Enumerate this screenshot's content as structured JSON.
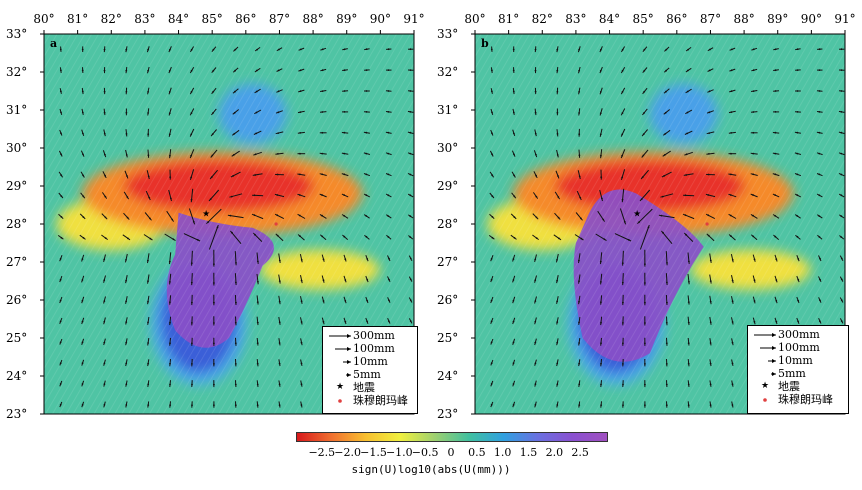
{
  "x_ticks": [
    "80°",
    "81°",
    "82°",
    "83°",
    "84°",
    "85°",
    "86°",
    "87°",
    "88°",
    "89°",
    "90°",
    "91°"
  ],
  "y_ticks": [
    "33°",
    "32°",
    "31°",
    "30°",
    "29°",
    "28°",
    "27°",
    "26°",
    "25°",
    "24°",
    "23°"
  ],
  "panels": [
    {
      "id": "a",
      "letter": "a"
    },
    {
      "id": "b",
      "letter": "b"
    }
  ],
  "legend": {
    "items": [
      {
        "key": "arrow-300",
        "label": "300mm"
      },
      {
        "key": "arrow-100",
        "label": "100mm"
      },
      {
        "key": "arrow-10",
        "label": "10mm"
      },
      {
        "key": "arrow-5",
        "label": "5mm"
      },
      {
        "key": "epicenter",
        "label": "地震"
      },
      {
        "key": "everest",
        "label": "珠穆朗玛峰"
      }
    ]
  },
  "colorbar": {
    "ticks": [
      "−2.5",
      "−2.0",
      "−1.5",
      "−1.0",
      "−0.5",
      "0",
      "0.5",
      "1.0",
      "1.5",
      "2.0",
      "2.5"
    ],
    "label": "sign(U)log10(abs(U(mm)))",
    "min": -3,
    "max": 3,
    "colors": [
      "#d7191c",
      "#f07030",
      "#f8c030",
      "#f0f040",
      "#9ed070",
      "#40c0a0",
      "#30a0e0",
      "#6a70e0",
      "#8a50d0",
      "#a050c0"
    ]
  },
  "colors": {
    "background_green": "#4fc4a4",
    "uplift_blue": "#3b5ed8",
    "uplift_purple": "#8a4fc8",
    "subsidence_red": "#e8302a",
    "subsidence_orange": "#f58a2c",
    "yellow": "#f0e040",
    "everest_dot": "#e04040"
  }
}
